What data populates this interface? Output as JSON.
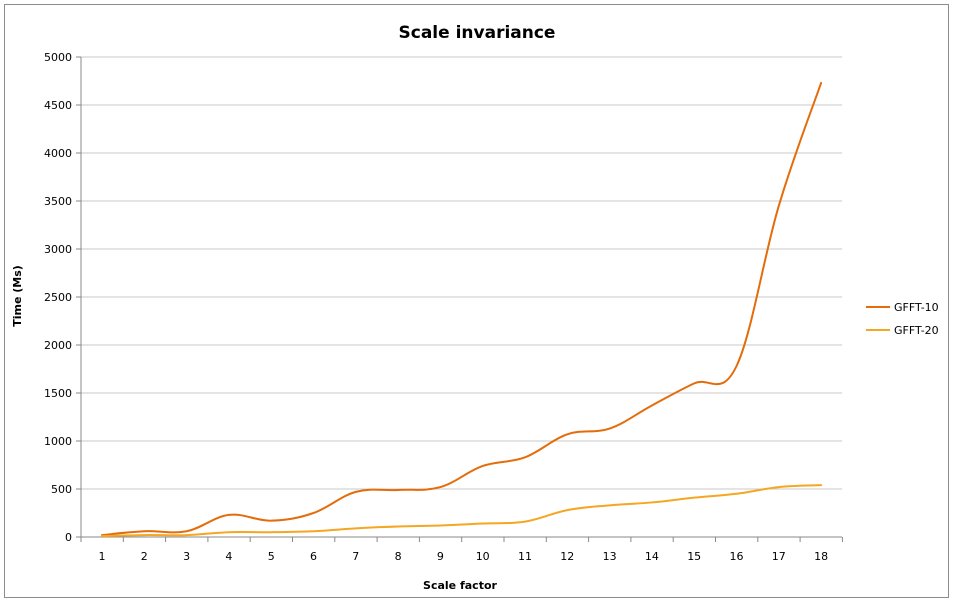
{
  "chart_data": {
    "type": "line",
    "title": "Scale invariance",
    "xlabel": "Scale factor",
    "ylabel": "Time (Ms)",
    "x": [
      1,
      2,
      3,
      4,
      5,
      6,
      7,
      8,
      9,
      10,
      11,
      12,
      13,
      14,
      15,
      16,
      17,
      18
    ],
    "ylim": [
      0,
      5000
    ],
    "yticks": [
      0,
      500,
      1000,
      1500,
      2000,
      2500,
      3000,
      3500,
      4000,
      4500,
      5000
    ],
    "grid": true,
    "legend_position": "right",
    "series": [
      {
        "name": "GFFT-10",
        "color": "#e46c0a",
        "values": [
          20,
          60,
          60,
          230,
          170,
          250,
          470,
          490,
          520,
          740,
          830,
          1070,
          1130,
          1370,
          1600,
          1780,
          3450,
          4730
        ]
      },
      {
        "name": "GFFT-20",
        "color": "#f5a623",
        "values": [
          10,
          20,
          20,
          50,
          50,
          60,
          90,
          110,
          120,
          140,
          160,
          280,
          330,
          360,
          410,
          450,
          520,
          540
        ]
      }
    ]
  }
}
